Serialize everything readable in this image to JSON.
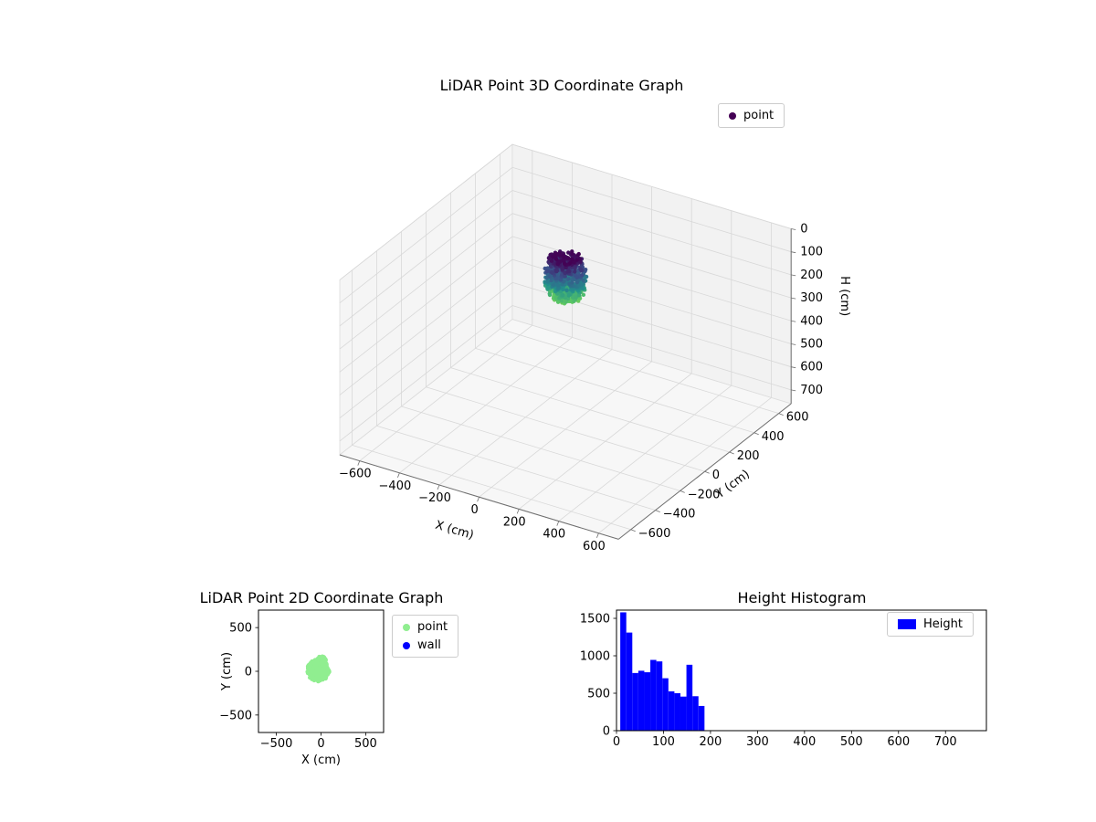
{
  "figure": {
    "background": "#ffffff"
  },
  "chart_data": [
    {
      "type": "scatter3d",
      "title": "LiDAR Point 3D Coordinate Graph",
      "xlabel": "X (cm)",
      "ylabel": "Y (cm)",
      "zlabel": "H (cm)",
      "xlim": [
        -700,
        700
      ],
      "ylim": [
        -700,
        700
      ],
      "zlim": [
        0,
        760
      ],
      "z_inverted": true,
      "xticks": [
        -600,
        -400,
        -200,
        0,
        200,
        400,
        600
      ],
      "yticks": [
        -600,
        -400,
        -200,
        0,
        200,
        400,
        600
      ],
      "zticks": [
        0,
        100,
        200,
        300,
        400,
        500,
        600,
        700
      ],
      "grid": true,
      "legend": [
        {
          "label": "point",
          "color": "#440154"
        }
      ],
      "cluster": {
        "center_x": 0,
        "center_y": 0,
        "radius_cm": 95,
        "h_min": 10,
        "h_max": 190,
        "points": 800,
        "colormap": "viridis",
        "color_t_max_divisor": 230
      }
    },
    {
      "type": "scatter",
      "title": "LiDAR Point 2D Coordinate Graph",
      "xlabel": "X (cm)",
      "ylabel": "Y (cm)",
      "xlim": [
        -700,
        700
      ],
      "ylim": [
        -700,
        700
      ],
      "xticks": [
        -500,
        0,
        500
      ],
      "yticks": [
        -500,
        0,
        500
      ],
      "grid": false,
      "legend": [
        {
          "label": "point",
          "color": "#90ee90"
        },
        {
          "label": "wall",
          "color": "#0000ff"
        }
      ],
      "cluster": {
        "center_x": -30,
        "center_y": 10,
        "radius_cm": 125,
        "points": 380,
        "color": "#90ee90",
        "bump": {
          "x": 5,
          "y": 125,
          "radius": 48,
          "points": 70
        }
      },
      "wall_points": []
    },
    {
      "type": "bar",
      "title": "Height Histogram",
      "xlabel": "",
      "ylabel": "",
      "xlim": [
        0,
        787
      ],
      "ylim": [
        0,
        1610
      ],
      "xticks": [
        0,
        100,
        200,
        300,
        400,
        500,
        600,
        700
      ],
      "yticks": [
        0,
        500,
        1000,
        1500
      ],
      "grid": false,
      "legend": [
        {
          "label": "Height",
          "color": "#0000ff"
        }
      ],
      "bar_color": "#0000ff",
      "bin_start": 8,
      "bin_width": 12.8,
      "values": [
        1580,
        1310,
        770,
        800,
        780,
        945,
        925,
        700,
        525,
        500,
        455,
        880,
        460,
        330
      ]
    }
  ]
}
